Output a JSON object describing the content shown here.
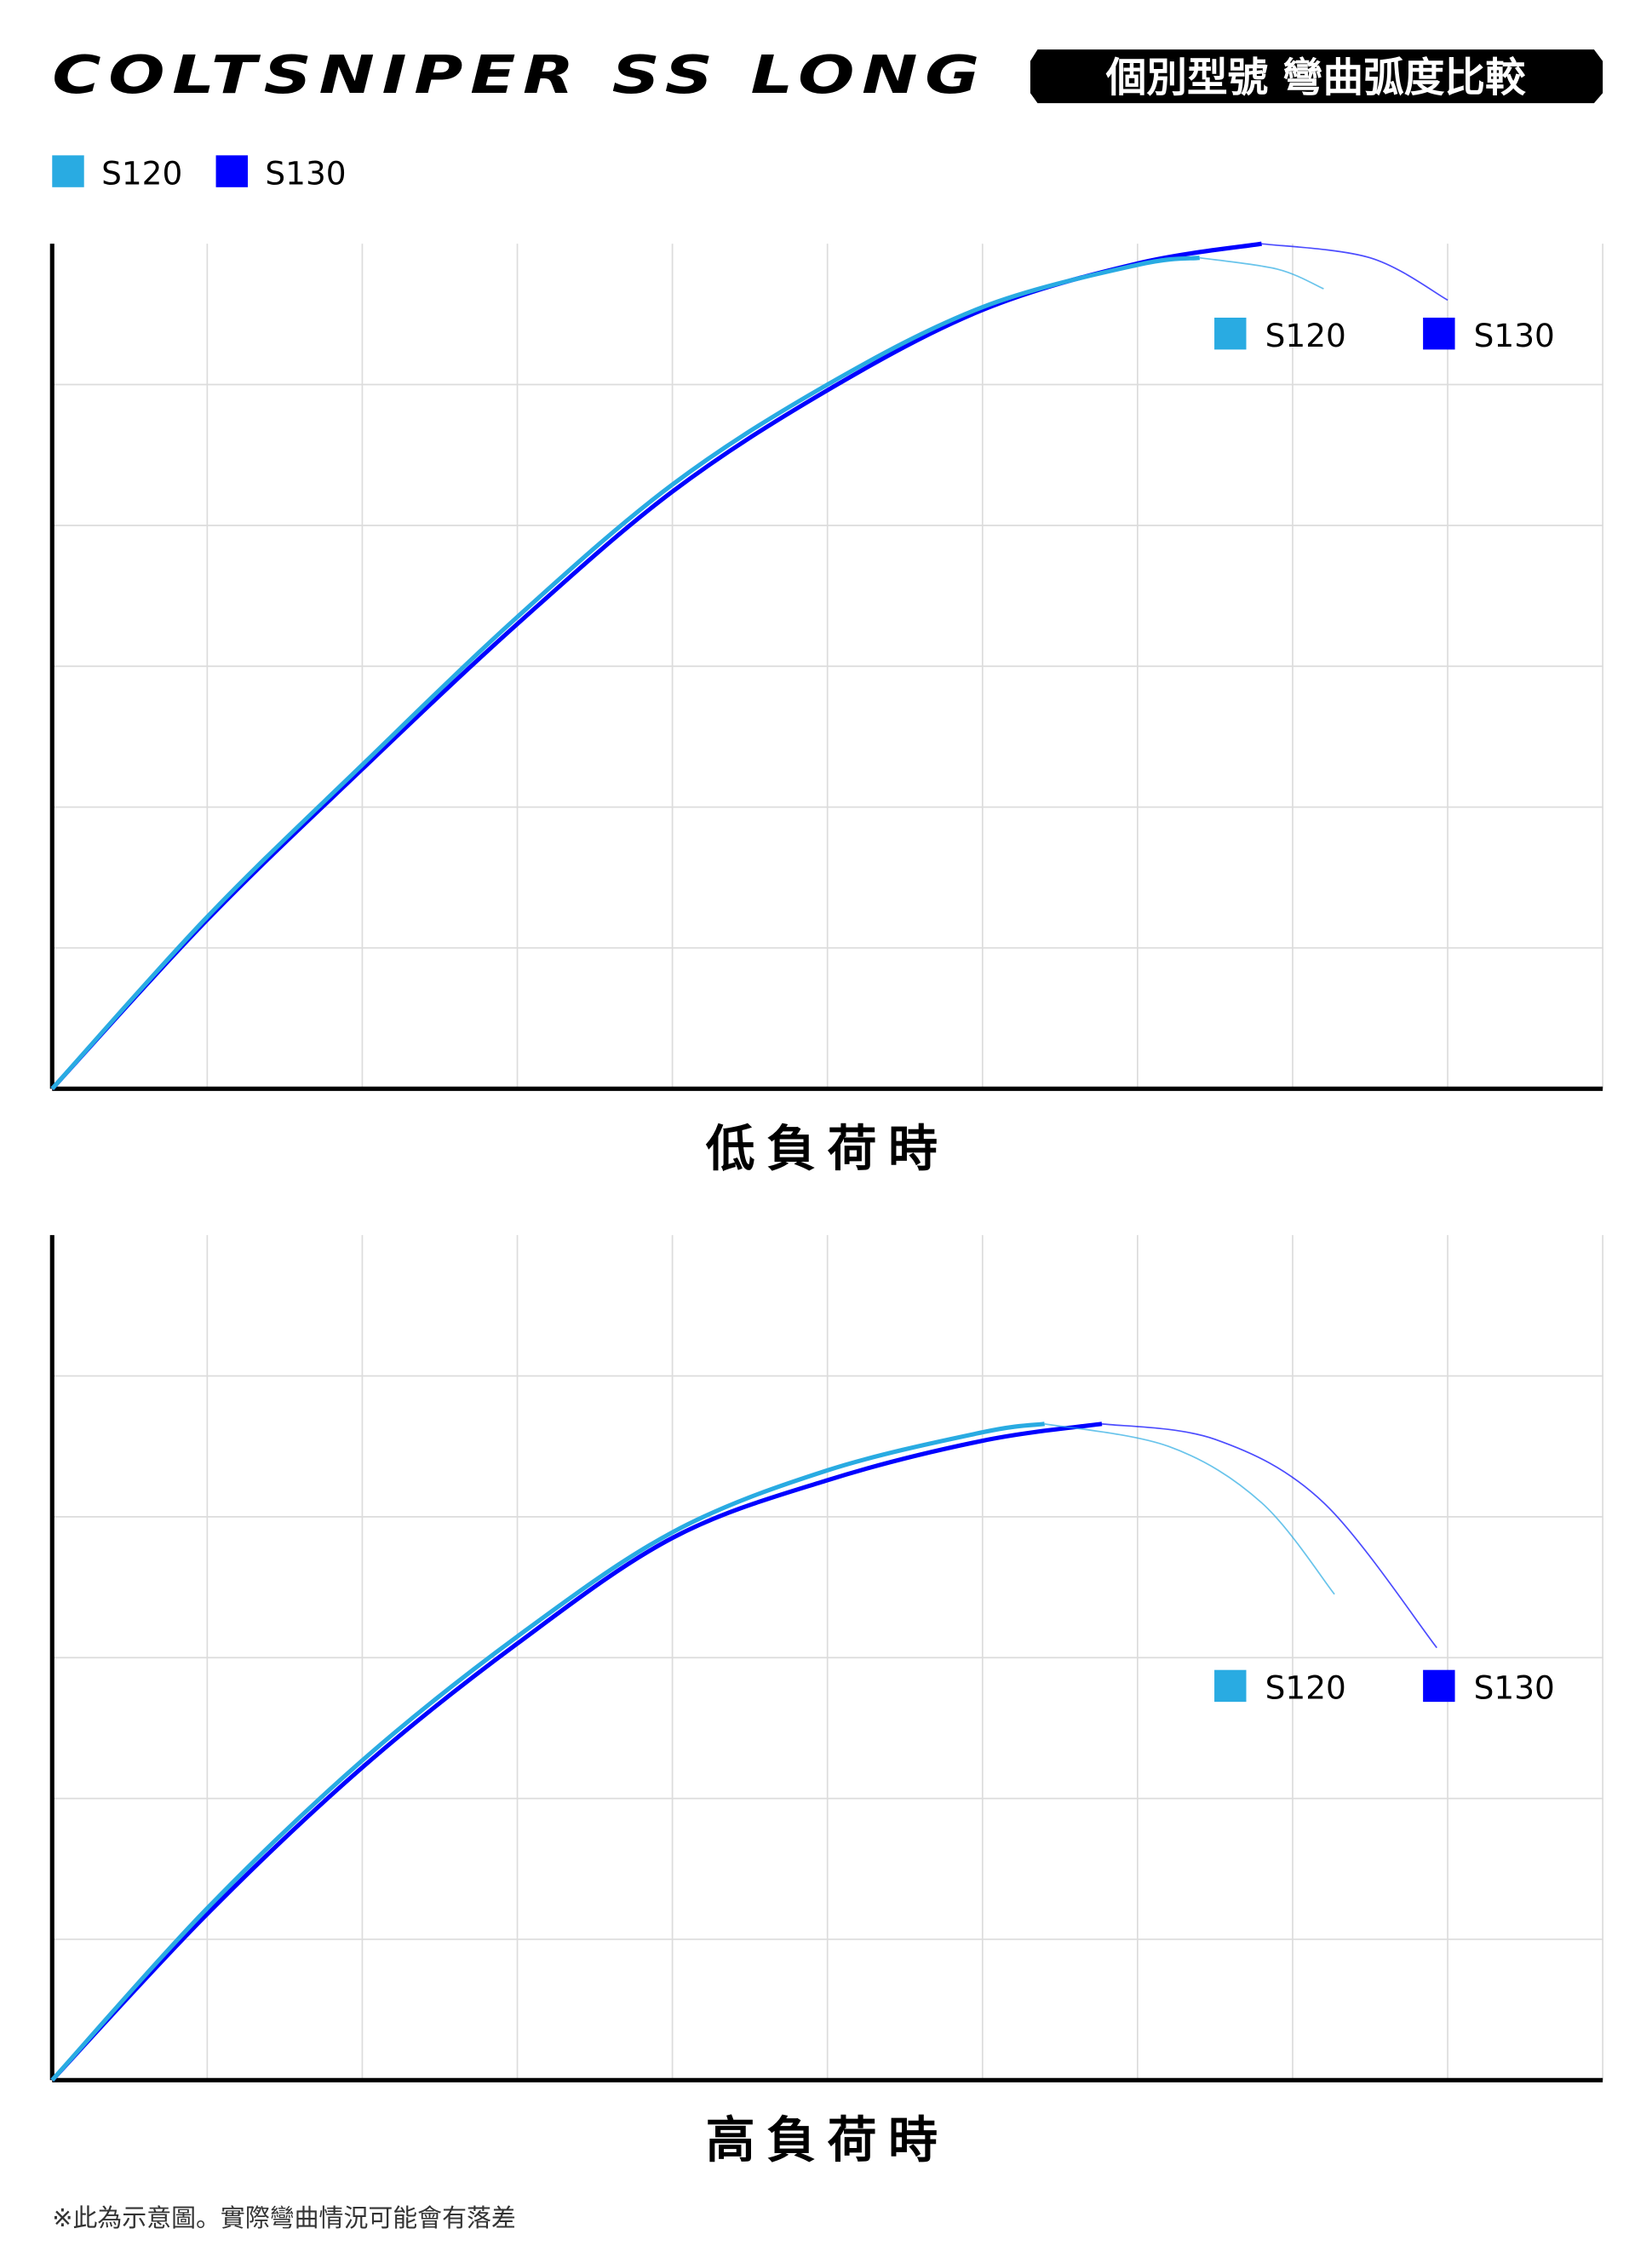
{
  "header": {
    "logo_text": "COLTSNIPER SS LONG",
    "badge": "個別型號 彎曲弧度比較"
  },
  "legend": [
    {
      "label": "S120",
      "color": "#29abe2"
    },
    {
      "label": "S130",
      "color": "#0000ff"
    }
  ],
  "footnote": "※此為示意圖。實際彎曲情況可能會有落差",
  "chart_data": [
    {
      "type": "line",
      "title": "低負荷時",
      "grid": true,
      "xlim": [
        0,
        10
      ],
      "ylim": [
        0,
        6
      ],
      "legend_position": "top-right",
      "series": [
        {
          "name": "S120",
          "color": "#29abe2",
          "x": [
            0,
            1,
            2,
            3,
            4,
            5,
            6,
            7,
            7.4,
            7.9,
            8.2
          ],
          "y": [
            0,
            1.22,
            2.3,
            3.35,
            4.29,
            5.0,
            5.55,
            5.85,
            5.9,
            5.82,
            5.68
          ]
        },
        {
          "name": "S130",
          "color": "#0000ff",
          "x": [
            0,
            1,
            2,
            3,
            4,
            5,
            6,
            7,
            7.8,
            8.5,
            9
          ],
          "y": [
            0,
            1.2,
            2.27,
            3.3,
            4.24,
            4.96,
            5.53,
            5.86,
            6.0,
            5.9,
            5.6
          ]
        }
      ]
    },
    {
      "type": "line",
      "title": "高負荷時",
      "grid": true,
      "xlim": [
        0,
        10
      ],
      "ylim": [
        0,
        6
      ],
      "legend_position": "right",
      "series": [
        {
          "name": "S120",
          "color": "#29abe2",
          "x": [
            0,
            1,
            2,
            3,
            4,
            5,
            6,
            6.4,
            7.2,
            7.8,
            8.27
          ],
          "y": [
            0,
            1.22,
            2.27,
            3.15,
            3.89,
            4.33,
            4.6,
            4.66,
            4.5,
            4.1,
            3.45
          ]
        },
        {
          "name": "S130",
          "color": "#0000ff",
          "x": [
            0,
            1,
            2,
            3,
            4,
            5,
            6,
            6.77,
            7.5,
            8.2,
            8.93
          ],
          "y": [
            0,
            1.18,
            2.22,
            3.1,
            3.85,
            4.26,
            4.54,
            4.66,
            4.55,
            4.1,
            3.07
          ]
        }
      ]
    }
  ]
}
